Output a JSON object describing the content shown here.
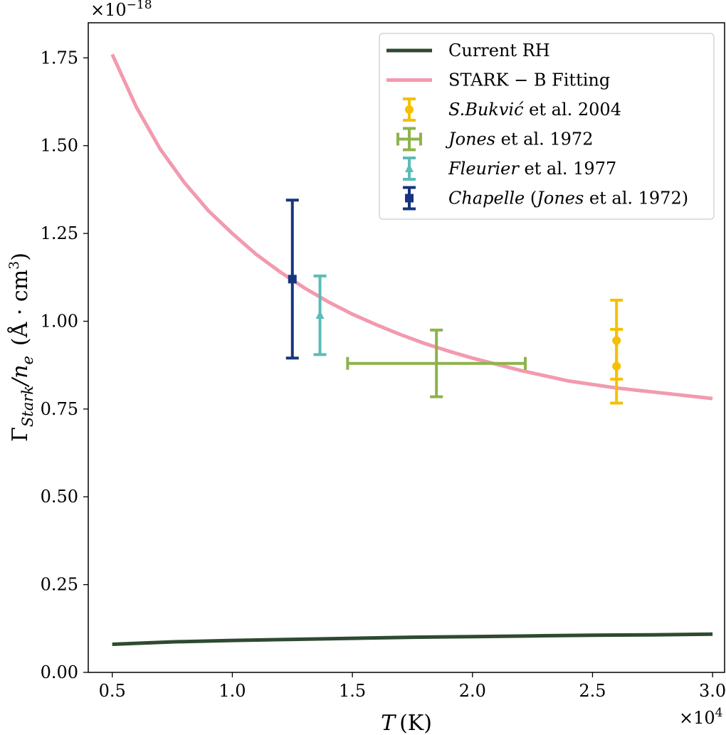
{
  "chart_data": {
    "type": "line",
    "x_multiplier_label": "×10",
    "x_multiplier_exp": "4",
    "y_multiplier_label": "×10",
    "y_multiplier_exp": "−18",
    "xlabel_var": "T",
    "xlabel_unit": "(K)",
    "ylabel": "Γ",
    "ylabel_sub": "Stark",
    "ylabel_mid": "/n",
    "ylabel_sub2": "e",
    "ylabel_unit": "(Å · cm",
    "ylabel_unit_exp": "3",
    "ylabel_unit_close": ")",
    "xlim": [
      0.4,
      3.05
    ],
    "ylim": [
      0.0,
      1.85
    ],
    "xticks": [
      "0.5",
      "1.0",
      "1.5",
      "2.0",
      "2.5",
      "3.0"
    ],
    "xtick_values": [
      0.5,
      1.0,
      1.5,
      2.0,
      2.5,
      3.0
    ],
    "yticks": [
      "0.00",
      "0.25",
      "0.50",
      "0.75",
      "1.00",
      "1.25",
      "1.50",
      "1.75"
    ],
    "ytick_values": [
      0.0,
      0.25,
      0.5,
      0.75,
      1.0,
      1.25,
      1.5,
      1.75
    ],
    "grid": false,
    "legend_position": "top-right",
    "series": [
      {
        "name": "Current RH",
        "kind": "line",
        "color": "#2e4a30",
        "x": [
          0.5,
          0.75,
          1.0,
          1.25,
          1.5,
          1.75,
          2.0,
          2.25,
          2.5,
          2.75,
          3.0
        ],
        "y": [
          0.08,
          0.087,
          0.091,
          0.094,
          0.097,
          0.1,
          0.102,
          0.104,
          0.106,
          0.107,
          0.109
        ]
      },
      {
        "name": "STARK − B Fitting",
        "kind": "line",
        "color": "#f29aae",
        "x": [
          0.5,
          0.6,
          0.7,
          0.8,
          0.9,
          1.0,
          1.1,
          1.2,
          1.3,
          1.4,
          1.5,
          1.6,
          1.7,
          1.8,
          1.9,
          2.0,
          2.2,
          2.4,
          2.6,
          2.8,
          3.0
        ],
        "y": [
          1.76,
          1.61,
          1.49,
          1.395,
          1.315,
          1.25,
          1.19,
          1.14,
          1.095,
          1.055,
          1.02,
          0.99,
          0.962,
          0.937,
          0.915,
          0.895,
          0.86,
          0.83,
          0.81,
          0.795,
          0.78
        ]
      },
      {
        "name": "S.Bukvić",
        "name_suffix": " et al. 2004",
        "kind": "errorbar",
        "marker": "circle",
        "color": "#f5c000",
        "points": [
          {
            "x": 2.6,
            "y": 0.945,
            "yerr": [
              0.11,
              0.115
            ],
            "xerr": [
              0,
              0
            ]
          },
          {
            "x": 2.6,
            "y": 0.872,
            "yerr": [
              0.105,
              0.105
            ],
            "xerr": [
              0,
              0
            ]
          }
        ]
      },
      {
        "name": "Jones",
        "name_suffix": " et al. 1972",
        "kind": "errorbar",
        "marker": "plus",
        "color": "#8db34a",
        "points": [
          {
            "x": 1.85,
            "y": 0.88,
            "yerr": [
              0.095,
              0.095
            ],
            "xerr": [
              0.37,
              0.37
            ]
          }
        ]
      },
      {
        "name": "Fleurier",
        "name_suffix": " et al. 1977",
        "kind": "errorbar",
        "marker": "triangle",
        "color": "#5bbcb8",
        "points": [
          {
            "x": 1.365,
            "y": 1.017,
            "yerr": [
              0.112,
              0.112
            ],
            "xerr": [
              0,
              0
            ]
          }
        ]
      },
      {
        "name": "Chapelle",
        "name_suffix": " (",
        "name_suffix2": "Jones",
        "name_suffix3": " et al. 1972)",
        "kind": "errorbar",
        "marker": "square",
        "color": "#17357e",
        "points": [
          {
            "x": 1.25,
            "y": 1.12,
            "yerr": [
              0.225,
              0.225
            ],
            "xerr": [
              0,
              0
            ]
          }
        ]
      }
    ]
  }
}
